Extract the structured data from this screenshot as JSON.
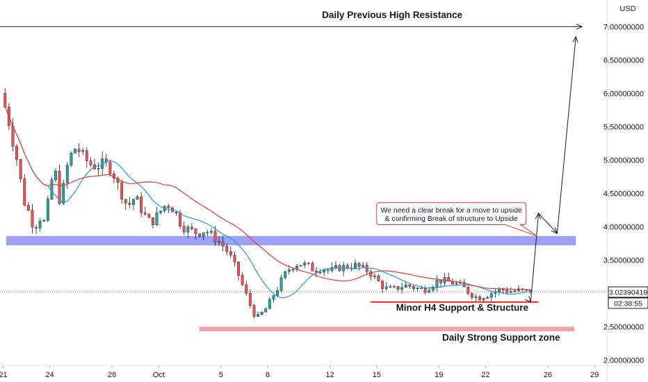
{
  "chart_data": {
    "type": "candlestick",
    "currency_label": "USD",
    "ylim": [
      1.92,
      7.4
    ],
    "y_ticks": [
      {
        "value": 7.0,
        "label": "7.00000000"
      },
      {
        "value": 6.5,
        "label": "6.50000000"
      },
      {
        "value": 6.0,
        "label": "6.00000000"
      },
      {
        "value": 5.5,
        "label": "5.50000000"
      },
      {
        "value": 5.0,
        "label": "5.00000000"
      },
      {
        "value": 4.5,
        "label": "4.50000000"
      },
      {
        "value": 4.0,
        "label": "4.00000000"
      },
      {
        "value": 3.5,
        "label": "3.50000000"
      },
      {
        "value": 2.5,
        "label": "2.50000000"
      },
      {
        "value": 2.0,
        "label": "2.00000000"
      }
    ],
    "x_range_days": [
      -0.2,
      38.8
    ],
    "x_ticks": [
      {
        "day": 0,
        "label": "21"
      },
      {
        "day": 3,
        "label": "24"
      },
      {
        "day": 7,
        "label": "28"
      },
      {
        "day": 10,
        "label": "Oct"
      },
      {
        "day": 14,
        "label": "5"
      },
      {
        "day": 17,
        "label": "8"
      },
      {
        "day": 21,
        "label": "12"
      },
      {
        "day": 24,
        "label": "15"
      },
      {
        "day": 28,
        "label": "19"
      },
      {
        "day": 31,
        "label": "22"
      },
      {
        "day": 35,
        "label": "26"
      },
      {
        "day": 38,
        "label": "29"
      }
    ],
    "last_price": {
      "value": 3.0239,
      "label": "3.02390419",
      "countdown": "02:38:55"
    },
    "price_path": [
      {
        "day": 0.0,
        "price": 5.9
      },
      {
        "day": 0.3,
        "price": 5.65
      },
      {
        "day": 0.7,
        "price": 5.2
      },
      {
        "day": 1.0,
        "price": 4.9
      },
      {
        "day": 1.3,
        "price": 4.4
      },
      {
        "day": 1.7,
        "price": 4.2
      },
      {
        "day": 2.0,
        "price": 3.95
      },
      {
        "day": 2.3,
        "price": 4.15
      },
      {
        "day": 2.7,
        "price": 4.05
      },
      {
        "day": 3.0,
        "price": 4.55
      },
      {
        "day": 3.3,
        "price": 4.9
      },
      {
        "day": 3.7,
        "price": 4.3
      },
      {
        "day": 4.0,
        "price": 4.8
      },
      {
        "day": 4.3,
        "price": 5.05
      },
      {
        "day": 4.7,
        "price": 5.2
      },
      {
        "day": 5.0,
        "price": 5.1
      },
      {
        "day": 5.5,
        "price": 4.95
      },
      {
        "day": 6.0,
        "price": 4.9
      },
      {
        "day": 6.5,
        "price": 4.95
      },
      {
        "day": 7.0,
        "price": 4.85
      },
      {
        "day": 7.5,
        "price": 4.55
      },
      {
        "day": 8.0,
        "price": 4.3
      },
      {
        "day": 8.5,
        "price": 4.45
      },
      {
        "day": 9.0,
        "price": 4.2
      },
      {
        "day": 9.5,
        "price": 4.05
      },
      {
        "day": 10.0,
        "price": 4.2
      },
      {
        "day": 10.5,
        "price": 4.35
      },
      {
        "day": 11.0,
        "price": 4.25
      },
      {
        "day": 11.5,
        "price": 4.0
      },
      {
        "day": 12.0,
        "price": 3.95
      },
      {
        "day": 12.5,
        "price": 3.9
      },
      {
        "day": 13.0,
        "price": 3.95
      },
      {
        "day": 13.5,
        "price": 3.85
      },
      {
        "day": 14.0,
        "price": 3.75
      },
      {
        "day": 14.5,
        "price": 3.6
      },
      {
        "day": 15.0,
        "price": 3.35
      },
      {
        "day": 15.5,
        "price": 3.05
      },
      {
        "day": 16.0,
        "price": 2.75
      },
      {
        "day": 16.3,
        "price": 2.62
      },
      {
        "day": 16.7,
        "price": 2.72
      },
      {
        "day": 17.0,
        "price": 2.8
      },
      {
        "day": 17.3,
        "price": 2.95
      },
      {
        "day": 17.7,
        "price": 3.1
      },
      {
        "day": 18.0,
        "price": 3.25
      },
      {
        "day": 18.5,
        "price": 3.4
      },
      {
        "day": 19.0,
        "price": 3.45
      },
      {
        "day": 19.5,
        "price": 3.42
      },
      {
        "day": 20.0,
        "price": 3.35
      },
      {
        "day": 20.5,
        "price": 3.38
      },
      {
        "day": 21.0,
        "price": 3.33
      },
      {
        "day": 21.5,
        "price": 3.38
      },
      {
        "day": 22.0,
        "price": 3.4
      },
      {
        "day": 22.5,
        "price": 3.43
      },
      {
        "day": 23.0,
        "price": 3.38
      },
      {
        "day": 23.5,
        "price": 3.33
      },
      {
        "day": 24.0,
        "price": 3.2
      },
      {
        "day": 24.5,
        "price": 3.08
      },
      {
        "day": 25.0,
        "price": 3.05
      },
      {
        "day": 25.5,
        "price": 3.1
      },
      {
        "day": 26.0,
        "price": 3.12
      },
      {
        "day": 26.5,
        "price": 3.08
      },
      {
        "day": 27.0,
        "price": 3.05
      },
      {
        "day": 27.5,
        "price": 3.12
      },
      {
        "day": 28.0,
        "price": 3.2
      },
      {
        "day": 28.5,
        "price": 3.18
      },
      {
        "day": 29.0,
        "price": 3.15
      },
      {
        "day": 29.5,
        "price": 3.1
      },
      {
        "day": 30.0,
        "price": 3.0
      },
      {
        "day": 30.5,
        "price": 2.93
      },
      {
        "day": 31.0,
        "price": 2.97
      },
      {
        "day": 31.5,
        "price": 3.02
      },
      {
        "day": 32.0,
        "price": 3.06
      },
      {
        "day": 32.5,
        "price": 3.03
      },
      {
        "day": 33.0,
        "price": 3.04
      },
      {
        "day": 33.5,
        "price": 3.03
      },
      {
        "day": 33.9,
        "price": 3.02
      }
    ],
    "moving_averages": [
      {
        "color": "#2196f3",
        "period": 3
      },
      {
        "color": "#e53935",
        "period": 7
      }
    ],
    "colors": {
      "up": "#26a69a",
      "down": "#ef5350",
      "wick": "#131722"
    },
    "zones": [
      {
        "from": 3.72,
        "to": 3.86,
        "day_from": 0.2,
        "day_to": 36.8,
        "color": "#8b8ff0"
      },
      {
        "from": 2.43,
        "to": 2.5,
        "day_from": 12.6,
        "day_to": 36.7,
        "color": "#e8959c"
      }
    ],
    "lines": [
      {
        "price": 7.0,
        "from_day": -0.2,
        "to_day": 37.2,
        "color": "#131722"
      },
      {
        "price": 2.87,
        "from_day": 23.6,
        "to_day": 34.4,
        "color": "#ff1f1f"
      }
    ],
    "projection_path": [
      {
        "day": 33.9,
        "price": 2.87
      },
      {
        "day": 34.4,
        "price": 4.2
      },
      {
        "day": 35.6,
        "price": 3.9
      },
      {
        "day": 36.8,
        "price": 6.85
      }
    ],
    "annotations": [
      {
        "text": "Daily Previous High Resistance",
        "day": 25.0,
        "price": 7.13
      },
      {
        "text": "Minor H4 Support & Structure",
        "day": 29.5,
        "price": 2.74
      },
      {
        "text": "Daily Strong Support zone",
        "day": 32.0,
        "price": 2.29
      }
    ],
    "callout": {
      "lines": [
        "We need a clear break for a move to upside",
        "& confirming Break of structure to Upside"
      ],
      "day_left": 24.0,
      "day_right": 33.6,
      "price_top": 4.36,
      "price_bottom": 4.03,
      "pointer": {
        "day": 34.3,
        "price": 3.86
      }
    }
  }
}
